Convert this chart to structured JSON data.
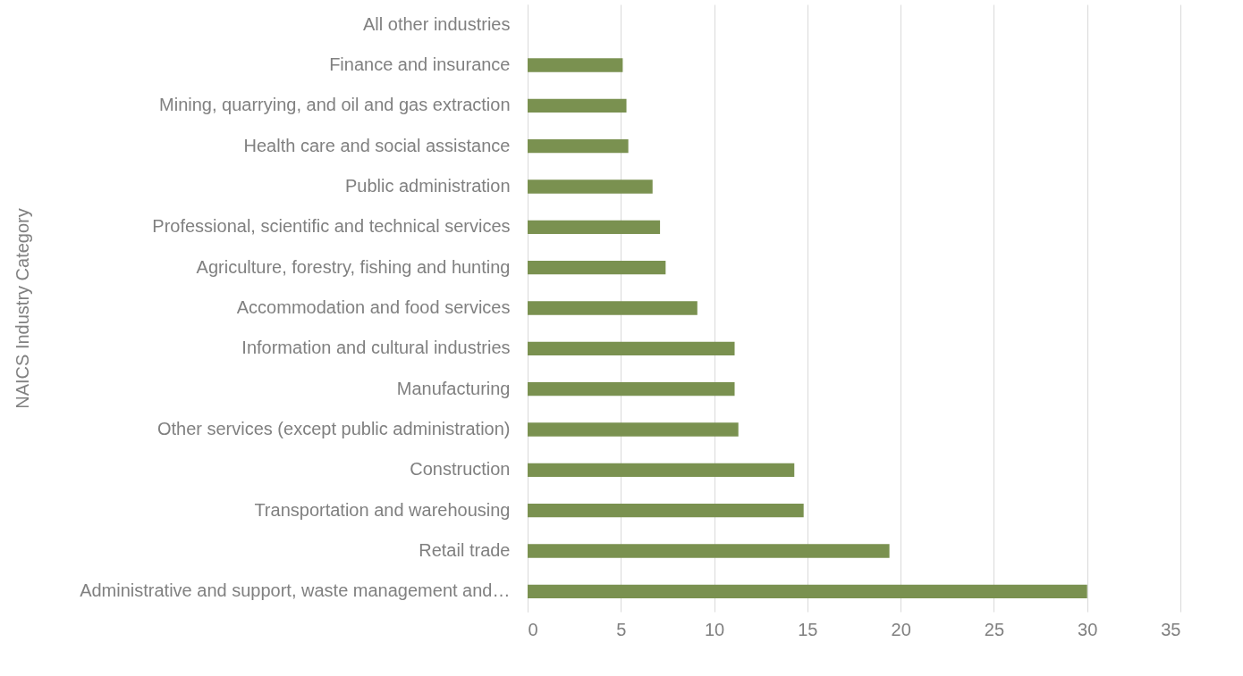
{
  "chart_data": {
    "type": "bar",
    "orientation": "horizontal",
    "ylabel": "NAICS Industry Category",
    "categories": [
      "All other industries",
      "Finance and insurance",
      "Mining, quarrying, and oil and gas extraction",
      "Health care and social assistance",
      "Public administration",
      "Professional, scientific and technical services",
      "Agriculture, forestry, fishing and hunting",
      "Accommodation and food services",
      "Information and cultural industries",
      "Manufacturing",
      "Other services (except public administration)",
      "Construction",
      "Transportation and warehousing",
      "Retail trade",
      "Administrative and support, waste management and…"
    ],
    "values": [
      0,
      5.1,
      5.3,
      5.4,
      6.7,
      7.1,
      7.4,
      9.1,
      11.1,
      11.1,
      11.3,
      14.3,
      14.8,
      19.4,
      30.0
    ],
    "color": "#7a9150",
    "xlim": [
      0,
      35
    ],
    "xticks": [
      0,
      5,
      10,
      15,
      20,
      25,
      30,
      35
    ],
    "grid": "x"
  }
}
